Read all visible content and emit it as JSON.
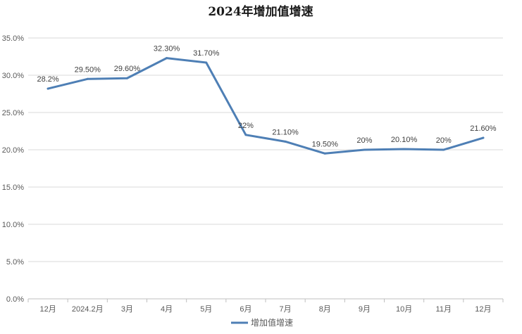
{
  "chart_data": {
    "type": "line",
    "title": "2024年增加值增速",
    "xlabel": "",
    "ylabel": "",
    "categories": [
      "12月",
      "2024.2月",
      "3月",
      "4月",
      "5月",
      "6月",
      "7月",
      "8月",
      "9月",
      "10月",
      "11月",
      "12月"
    ],
    "series": [
      {
        "name": "增加值增速",
        "values": [
          28.2,
          29.5,
          29.6,
          32.3,
          31.7,
          22.0,
          21.1,
          19.5,
          20.0,
          20.1,
          20.0,
          21.6
        ],
        "data_labels": [
          "28.2%",
          "29.50%",
          "29.60%",
          "32.30%",
          "31.70%",
          "22%",
          "21.10%",
          "19.50%",
          "20%",
          "20.10%",
          "20%",
          "21.60%"
        ],
        "color": "#4e7fb5"
      }
    ],
    "ylim": [
      0,
      35
    ],
    "yticks": [
      0,
      5,
      10,
      15,
      20,
      25,
      30,
      35
    ],
    "ytick_labels": [
      "0.0%",
      "5.0%",
      "10.0%",
      "15.0%",
      "20.0%",
      "25.0%",
      "30.0%",
      "35.0%"
    ],
    "grid": true,
    "legend_position": "bottom"
  }
}
